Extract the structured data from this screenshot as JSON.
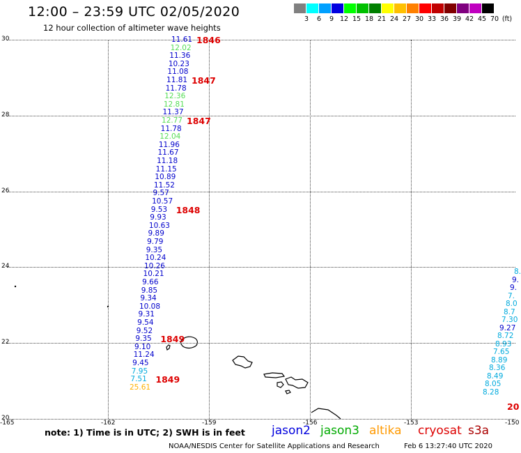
{
  "title": "12:00 – 23:59 UTC 02/05/2020",
  "subtitle": "12 hour collection of altimeter wave heights",
  "legend": [
    {
      "label": "3",
      "color": "#808080"
    },
    {
      "label": "6",
      "color": "#00ffff"
    },
    {
      "label": "9",
      "color": "#00a0ff"
    },
    {
      "label": "12",
      "color": "#0000e0"
    },
    {
      "label": "15",
      "color": "#00ff00"
    },
    {
      "label": "18",
      "color": "#00c000"
    },
    {
      "label": "21",
      "color": "#008000"
    },
    {
      "label": "24",
      "color": "#ffff00"
    },
    {
      "label": "27",
      "color": "#ffc000"
    },
    {
      "label": "30",
      "color": "#ff8000"
    },
    {
      "label": "33",
      "color": "#ff0000"
    },
    {
      "label": "36",
      "color": "#c00000"
    },
    {
      "label": "39",
      "color": "#800000"
    },
    {
      "label": "42",
      "color": "#800080"
    },
    {
      "label": "45",
      "color": "#c000c0"
    },
    {
      "label": "70",
      "color": "#000000"
    },
    {
      "label": "(ft)",
      "color": ""
    }
  ],
  "axes": {
    "lat_labels": [
      "30",
      "28",
      "26",
      "24",
      "22",
      "20"
    ],
    "lon_labels": [
      "-165",
      "-162",
      "-159",
      "-156",
      "-153",
      "-150"
    ]
  },
  "track_main": [
    {
      "v": "11.61",
      "c": "#0000cc"
    },
    {
      "v": "12.02",
      "c": "#55dd55"
    },
    {
      "v": "11.36",
      "c": "#0000cc"
    },
    {
      "v": "10.23",
      "c": "#0000cc"
    },
    {
      "v": "11.08",
      "c": "#0000cc"
    },
    {
      "v": "11.81",
      "c": "#0000cc"
    },
    {
      "v": "11.78",
      "c": "#0000cc"
    },
    {
      "v": "12.36",
      "c": "#55dd55"
    },
    {
      "v": "12.81",
      "c": "#55dd55"
    },
    {
      "v": "11.37",
      "c": "#0000cc"
    },
    {
      "v": "12.77",
      "c": "#55dd55"
    },
    {
      "v": "11.78",
      "c": "#0000cc"
    },
    {
      "v": "12.04",
      "c": "#55dd55"
    },
    {
      "v": "11.96",
      "c": "#0000cc"
    },
    {
      "v": "11.67",
      "c": "#0000cc"
    },
    {
      "v": "11.18",
      "c": "#0000cc"
    },
    {
      "v": "11.15",
      "c": "#0000cc"
    },
    {
      "v": "10.89",
      "c": "#0000cc"
    },
    {
      "v": "11.52",
      "c": "#0000cc"
    },
    {
      "v": "9.57",
      "c": "#0000cc"
    },
    {
      "v": "10.57",
      "c": "#0000cc"
    },
    {
      "v": "9.53",
      "c": "#0000cc"
    },
    {
      "v": "9.93",
      "c": "#0000cc"
    },
    {
      "v": "10.63",
      "c": "#0000cc"
    },
    {
      "v": "9.89",
      "c": "#0000cc"
    },
    {
      "v": "9.79",
      "c": "#0000cc"
    },
    {
      "v": "9.35",
      "c": "#0000cc"
    },
    {
      "v": "10.24",
      "c": "#0000cc"
    },
    {
      "v": "10.26",
      "c": "#0000cc"
    },
    {
      "v": "10.21",
      "c": "#0000cc"
    },
    {
      "v": "9.66",
      "c": "#0000cc"
    },
    {
      "v": "9.85",
      "c": "#0000cc"
    },
    {
      "v": "9.34",
      "c": "#0000cc"
    },
    {
      "v": "10.08",
      "c": "#0000cc"
    },
    {
      "v": "9.31",
      "c": "#0000cc"
    },
    {
      "v": "9.54",
      "c": "#0000cc"
    },
    {
      "v": "9.52",
      "c": "#0000cc"
    },
    {
      "v": "9.35",
      "c": "#0000cc"
    },
    {
      "v": "9.10",
      "c": "#0000cc"
    },
    {
      "v": "11.24",
      "c": "#0000cc"
    },
    {
      "v": "9.45",
      "c": "#0000cc"
    },
    {
      "v": "7.95",
      "c": "#00aadd"
    },
    {
      "v": "7.51",
      "c": "#00aadd"
    },
    {
      "v": "25.61",
      "c": "#ffb000"
    }
  ],
  "pass_numbers": [
    "1846",
    "1847",
    "1847",
    "1848",
    "1849",
    "1849"
  ],
  "track_east": [
    {
      "v": "8.",
      "c": "#00aadd"
    },
    {
      "v": "9.",
      "c": "#0000cc"
    },
    {
      "v": "9.",
      "c": "#0000cc"
    },
    {
      "v": "7.",
      "c": "#00aadd"
    },
    {
      "v": "8.0",
      "c": "#00aadd"
    },
    {
      "v": "8.7",
      "c": "#00aadd"
    },
    {
      "v": "7.30",
      "c": "#00aadd"
    },
    {
      "v": "9.27",
      "c": "#0000cc"
    },
    {
      "v": "8.72",
      "c": "#00aadd"
    },
    {
      "v": "8.93",
      "c": "#00aadd"
    },
    {
      "v": "7.65",
      "c": "#00aadd"
    },
    {
      "v": "8.89",
      "c": "#00aadd"
    },
    {
      "v": "8.36",
      "c": "#00aadd"
    },
    {
      "v": "8.49",
      "c": "#00aadd"
    },
    {
      "v": "8.05",
      "c": "#00aadd"
    },
    {
      "v": "8.28",
      "c": "#00aadd"
    }
  ],
  "east_pass": "20",
  "note": "note: 1) Time is in UTC; 2) SWH is in feet",
  "satellites": [
    {
      "name": "jason2",
      "color": "#0000dd"
    },
    {
      "name": "jason3",
      "color": "#00aa00"
    },
    {
      "name": "altika",
      "color": "#ff9900"
    },
    {
      "name": "cryosat",
      "color": "#dd0000"
    },
    {
      "name": "s3a",
      "color": "#aa0000"
    }
  ],
  "footer": "NOAA/NESDIS Center for Satellite Applications and Research",
  "footer_date": "Feb  6 13:27:40 UTC 2020"
}
